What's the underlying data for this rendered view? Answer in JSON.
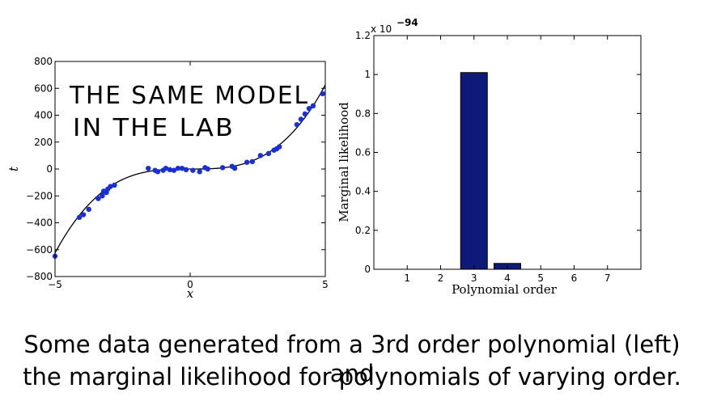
{
  "caption": {
    "line1": "Some data generated from a 3rd order polynomial (left) and",
    "line2": "the marginal likelihood for polynomials of varying order."
  },
  "annotation": {
    "line1": "THE SAME MODEL",
    "line2": "IN THE LAB"
  },
  "colors": {
    "points": "#1a2fd6",
    "bars": "#0d1a7a",
    "curve": "#000000"
  },
  "chart_data": [
    {
      "type": "scatter",
      "title": "",
      "xlabel": "x",
      "ylabel": "t",
      "xlim": [
        -5,
        5
      ],
      "ylim": [
        -800,
        800
      ],
      "xticks": [
        -5,
        0,
        5
      ],
      "yticks": [
        -800,
        -600,
        -400,
        -200,
        0,
        200,
        400,
        600,
        800
      ],
      "xtick_labels": [
        "−5",
        "0",
        "5"
      ],
      "ytick_labels": [
        "−800",
        "−600",
        "−400",
        "−200",
        "0",
        "200",
        "400",
        "600",
        "800"
      ],
      "grid": false,
      "curve": {
        "name": "",
        "coefficients_cubic_to_const": [
          5,
          0,
          0,
          0
        ],
        "note_hidden": false
      },
      "points": [
        {
          "x": -5.0,
          "y": -648
        },
        {
          "x": -4.1,
          "y": -360
        },
        {
          "x": -3.95,
          "y": -340
        },
        {
          "x": -3.75,
          "y": -300
        },
        {
          "x": -3.4,
          "y": -220
        },
        {
          "x": -3.25,
          "y": -200
        },
        {
          "x": -3.2,
          "y": -165
        },
        {
          "x": -3.1,
          "y": -175
        },
        {
          "x": -3.05,
          "y": -150
        },
        {
          "x": -2.95,
          "y": -130
        },
        {
          "x": -2.8,
          "y": -120
        },
        {
          "x": -1.55,
          "y": 5
        },
        {
          "x": -1.3,
          "y": -10
        },
        {
          "x": -1.2,
          "y": -20
        },
        {
          "x": -1.0,
          "y": -10
        },
        {
          "x": -0.9,
          "y": 5
        },
        {
          "x": -0.75,
          "y": -5
        },
        {
          "x": -0.6,
          "y": -10
        },
        {
          "x": -0.45,
          "y": 5
        },
        {
          "x": -0.3,
          "y": 5
        },
        {
          "x": -0.15,
          "y": -5
        },
        {
          "x": 0.1,
          "y": -10
        },
        {
          "x": 0.35,
          "y": -20
        },
        {
          "x": 0.55,
          "y": 10
        },
        {
          "x": 0.65,
          "y": 0
        },
        {
          "x": 1.2,
          "y": 10
        },
        {
          "x": 1.55,
          "y": 20
        },
        {
          "x": 1.65,
          "y": 5
        },
        {
          "x": 2.1,
          "y": 50
        },
        {
          "x": 2.3,
          "y": 55
        },
        {
          "x": 2.6,
          "y": 100
        },
        {
          "x": 2.9,
          "y": 115
        },
        {
          "x": 3.1,
          "y": 140
        },
        {
          "x": 3.2,
          "y": 150
        },
        {
          "x": 3.3,
          "y": 165
        },
        {
          "x": 3.95,
          "y": 330
        },
        {
          "x": 4.1,
          "y": 370
        },
        {
          "x": 4.25,
          "y": 410
        },
        {
          "x": 4.4,
          "y": 450
        },
        {
          "x": 4.55,
          "y": 470
        },
        {
          "x": 4.9,
          "y": 560
        }
      ]
    },
    {
      "type": "bar",
      "title": "",
      "xlabel": "Polynomial order",
      "ylabel": "Marginal likelihood",
      "scale_label": {
        "base": "x 10",
        "exponent": "−94"
      },
      "categories": [
        "1",
        "2",
        "3",
        "4",
        "5",
        "6",
        "7"
      ],
      "values": [
        0,
        0,
        1.01,
        0.03,
        0,
        0,
        0
      ],
      "xlim": [
        0,
        8
      ],
      "ylim": [
        0,
        1.2
      ],
      "yticks": [
        0,
        0.2,
        0.4,
        0.6,
        0.8,
        1,
        1.2
      ],
      "ytick_labels": [
        "0",
        "0.2",
        "0.4",
        "0.6",
        "0.8",
        "1",
        "1.2"
      ],
      "grid": false
    }
  ]
}
